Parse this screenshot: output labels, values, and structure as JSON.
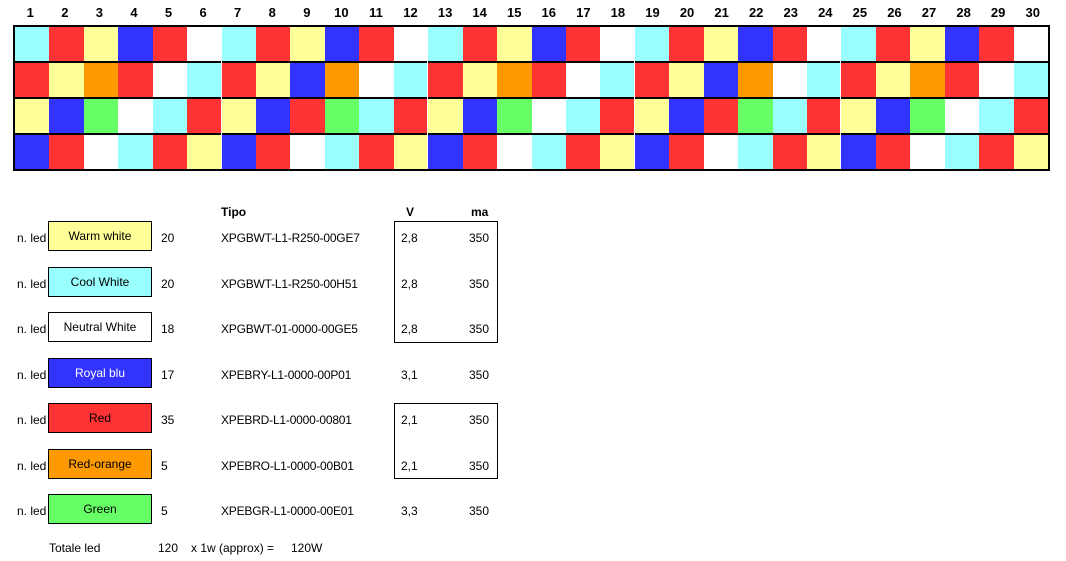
{
  "columns": [
    "1",
    "2",
    "3",
    "4",
    "5",
    "6",
    "7",
    "8",
    "9",
    "10",
    "11",
    "12",
    "13",
    "14",
    "15",
    "16",
    "17",
    "18",
    "19",
    "20",
    "21",
    "22",
    "23",
    "24",
    "25",
    "26",
    "27",
    "28",
    "29",
    "30"
  ],
  "palette": {
    "W": "#ffff99",
    "C": "#99ffff",
    "N": "#ffffff",
    "B": "#3333ff",
    "R": "#ff3333",
    "O": "#ff9900",
    "G": "#66ff66"
  },
  "grid_rows": [
    [
      "C",
      "R",
      "W",
      "B",
      "R",
      "N",
      "C",
      "R",
      "W",
      "B",
      "R",
      "N",
      "C",
      "R",
      "W",
      "B",
      "R",
      "N",
      "C",
      "R",
      "W",
      "B",
      "R",
      "N",
      "C",
      "R",
      "W",
      "B",
      "R",
      "N"
    ],
    [
      "R",
      "W",
      "O",
      "R",
      "N",
      "C",
      "R",
      "W",
      "B",
      "O",
      "N",
      "C",
      "R",
      "W",
      "O",
      "R",
      "N",
      "C",
      "R",
      "W",
      "B",
      "O",
      "N",
      "C",
      "R",
      "W",
      "O",
      "R",
      "N",
      "C"
    ],
    [
      "W",
      "B",
      "G",
      "N",
      "C",
      "R",
      "W",
      "B",
      "R",
      "G",
      "C",
      "R",
      "W",
      "B",
      "G",
      "N",
      "C",
      "R",
      "W",
      "B",
      "R",
      "G",
      "C",
      "R",
      "W",
      "B",
      "G",
      "N",
      "C",
      "R"
    ],
    [
      "B",
      "R",
      "N",
      "C",
      "R",
      "W",
      "B",
      "R",
      "N",
      "C",
      "R",
      "W",
      "B",
      "R",
      "N",
      "C",
      "R",
      "W",
      "B",
      "R",
      "N",
      "C",
      "R",
      "W",
      "B",
      "R",
      "N",
      "C",
      "R",
      "W"
    ]
  ],
  "legend": {
    "headers": {
      "tipo": "Tipo",
      "v": "V",
      "ma": "ma"
    },
    "row_prefix": "n. led",
    "items": [
      {
        "label": "Warm white",
        "color": "#ffff99",
        "text_color": "#000000",
        "count": "20",
        "code": "XPGBWT-L1-R250-00GE7",
        "v": "2,8",
        "ma": "350"
      },
      {
        "label": "Cool White",
        "color": "#99ffff",
        "text_color": "#000000",
        "count": "20",
        "code": "XPGBWT-L1-R250-00H51",
        "v": "2,8",
        "ma": "350"
      },
      {
        "label": "Neutral White",
        "color": "#ffffff",
        "text_color": "#000000",
        "count": "18",
        "code": "XPGBWT-01-0000-00GE5",
        "v": "2,8",
        "ma": "350"
      },
      {
        "label": "Royal blu",
        "color": "#3333ff",
        "text_color": "#ffffff",
        "count": "17",
        "code": "XPEBRY-L1-0000-00P01",
        "v": "3,1",
        "ma": "350"
      },
      {
        "label": "Red",
        "color": "#ff3333",
        "text_color": "#000000",
        "count": "35",
        "code": "XPEBRD-L1-0000-00801",
        "v": "2,1",
        "ma": "350"
      },
      {
        "label": "Red-orange",
        "color": "#ff9900",
        "text_color": "#000000",
        "count": "5",
        "code": "XPEBRO-L1-0000-00B01",
        "v": "2,1",
        "ma": "350"
      },
      {
        "label": "Green",
        "color": "#66ff66",
        "text_color": "#000000",
        "count": "5",
        "code": "XPEBGR-L1-0000-00E01",
        "v": "3,3",
        "ma": "350"
      }
    ]
  },
  "total": {
    "label": "Totale led",
    "count": "120",
    "multiplier": "x 1w (approx) =",
    "watts": "120W"
  }
}
